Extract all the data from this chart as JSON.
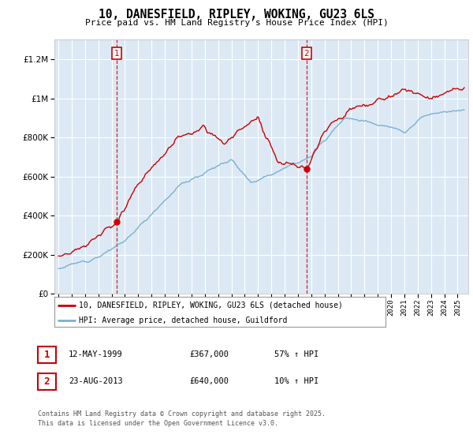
{
  "title": "10, DANESFIELD, RIPLEY, WOKING, GU23 6LS",
  "subtitle": "Price paid vs. HM Land Registry's House Price Index (HPI)",
  "legend_line1": "10, DANESFIELD, RIPLEY, WOKING, GU23 6LS (detached house)",
  "legend_line2": "HPI: Average price, detached house, Guildford",
  "annotation1_date": "12-MAY-1999",
  "annotation1_price": "£367,000",
  "annotation1_hpi": "57% ↑ HPI",
  "annotation2_date": "23-AUG-2013",
  "annotation2_price": "£640,000",
  "annotation2_hpi": "10% ↑ HPI",
  "footnote1": "Contains HM Land Registry data © Crown copyright and database right 2025.",
  "footnote2": "This data is licensed under the Open Government Licence v3.0.",
  "red_color": "#cc0000",
  "blue_color": "#7ab0d4",
  "bg_color": "#dce9f5",
  "grid_color": "#ffffff",
  "marker1_year": 1999.37,
  "marker1_price": 367000,
  "marker2_year": 2013.65,
  "marker2_price": 640000,
  "ylim_min": 0,
  "ylim_max": 1300000,
  "xmin": 1994.7,
  "xmax": 2025.8
}
